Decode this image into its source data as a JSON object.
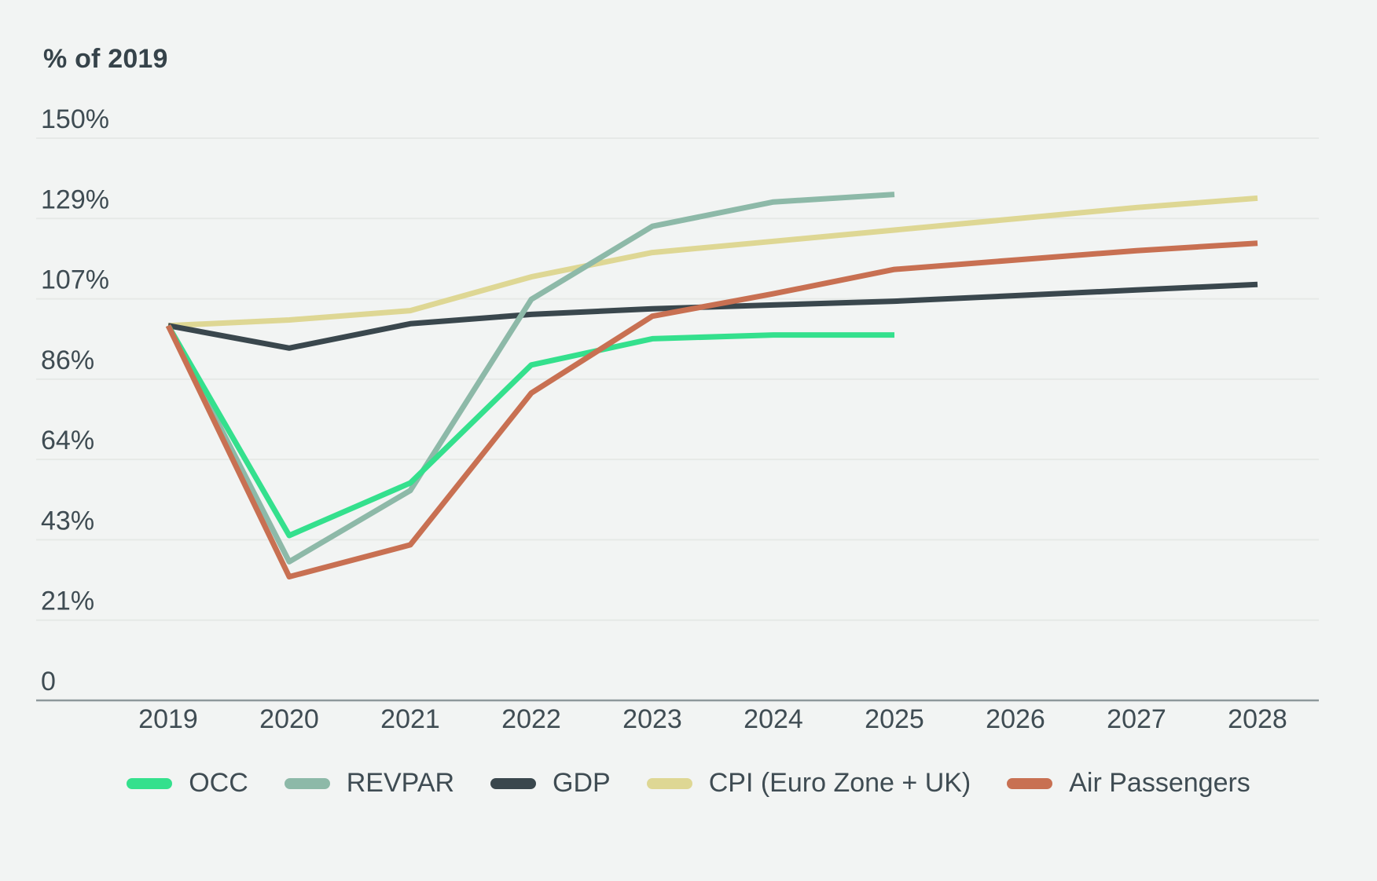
{
  "chart": {
    "title": "% of 2019",
    "background_color": "#f2f4f3",
    "text_color": "#3f4c53",
    "gridline_color": "#e6e9e7",
    "axis_line_color": "#8e989b"
  },
  "chart_data": {
    "type": "line",
    "title": "% of 2019",
    "xlabel": "",
    "ylabel": "% of 2019",
    "categories": [
      "2019",
      "2020",
      "2021",
      "2022",
      "2023",
      "2024",
      "2025",
      "2026",
      "2027",
      "2028"
    ],
    "y_ticks": [
      {
        "label": "150%",
        "value": 150
      },
      {
        "label": "129%",
        "value": 128.57
      },
      {
        "label": "107%",
        "value": 107.14
      },
      {
        "label": "86%",
        "value": 85.71
      },
      {
        "label": "64%",
        "value": 64.29
      },
      {
        "label": "43%",
        "value": 42.86
      },
      {
        "label": "21%",
        "value": 21.43
      },
      {
        "label": "0",
        "value": 0
      }
    ],
    "ylim": [
      0,
      150
    ],
    "grid": true,
    "legend_position": "bottom",
    "series": [
      {
        "name": "OCC",
        "color": "#34e08d",
        "values": [
          100,
          44,
          58,
          89.5,
          96.5,
          97.5,
          97.5,
          null,
          null,
          null
        ]
      },
      {
        "name": "REVPAR",
        "color": "#8db9a8",
        "values": [
          100,
          37,
          56,
          107,
          126.5,
          133,
          135,
          null,
          null,
          null
        ]
      },
      {
        "name": "GDP",
        "color": "#3a474d",
        "values": [
          100,
          94,
          100.5,
          103,
          104.5,
          105.5,
          106.5,
          108,
          109.5,
          111
        ]
      },
      {
        "name": "CPI (Euro Zone + UK)",
        "color": "#ded794",
        "values": [
          100,
          101.5,
          104,
          113,
          119.5,
          122.5,
          125.5,
          128.5,
          131.5,
          134
        ]
      },
      {
        "name": "Air Passengers",
        "color": "#c87052",
        "values": [
          100,
          33,
          41.5,
          82,
          102.5,
          108.5,
          115,
          117.5,
          120,
          122
        ]
      }
    ]
  }
}
